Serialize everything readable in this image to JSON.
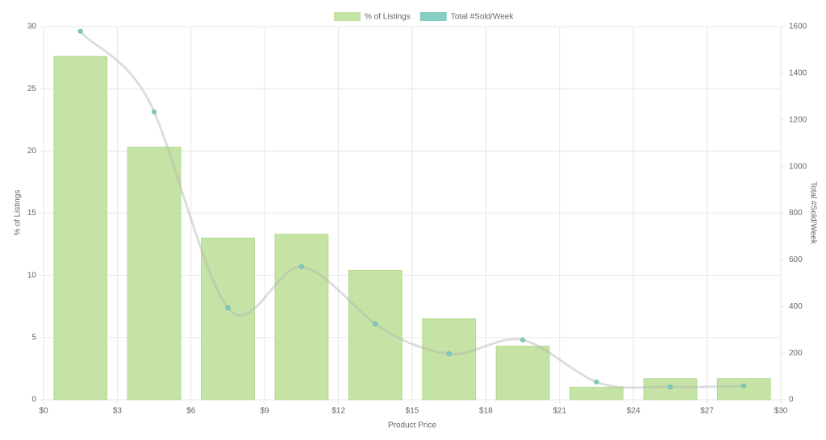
{
  "chart_data": {
    "type": "bar-line",
    "x_label": "Product Price",
    "y_label": "% of Listings",
    "y2_label": "Total #Sold/Week",
    "x": [
      1.5,
      4.5,
      7.5,
      10.5,
      13.5,
      16.5,
      19.5,
      22.5,
      25.5,
      28.5
    ],
    "series": [
      {
        "name": "% of Listings",
        "type": "bar",
        "color": "#c5e3a5",
        "values": [
          27.6,
          20.3,
          13.0,
          13.3,
          10.4,
          6.5,
          4.3,
          1.0,
          1.7,
          1.7
        ]
      },
      {
        "name": "Total #Sold/Week",
        "type": "line",
        "axis": "y2",
        "color": "#86cdc3",
        "values": [
          1580,
          1234,
          394,
          570,
          325,
          197,
          256,
          76,
          55,
          59
        ]
      }
    ],
    "xlim": [
      0,
      30
    ],
    "xticks": [
      {
        "value": 0,
        "label": "$0"
      },
      {
        "value": 3,
        "label": "$3"
      },
      {
        "value": 6,
        "label": "$6"
      },
      {
        "value": 9,
        "label": "$9"
      },
      {
        "value": 12,
        "label": "$12"
      },
      {
        "value": 15,
        "label": "$15"
      },
      {
        "value": 18,
        "label": "$18"
      },
      {
        "value": 21,
        "label": "$21"
      },
      {
        "value": 24,
        "label": "$24"
      },
      {
        "value": 27,
        "label": "$27"
      },
      {
        "value": 30,
        "label": "$30"
      }
    ],
    "ylim": [
      0,
      30
    ],
    "yticks": [
      0,
      5,
      10,
      15,
      20,
      25,
      30
    ],
    "y2lim": [
      0,
      1600
    ],
    "y2ticks": [
      0,
      200,
      400,
      600,
      800,
      1000,
      1200,
      1400,
      1600
    ],
    "grid": true,
    "legend": "top"
  }
}
